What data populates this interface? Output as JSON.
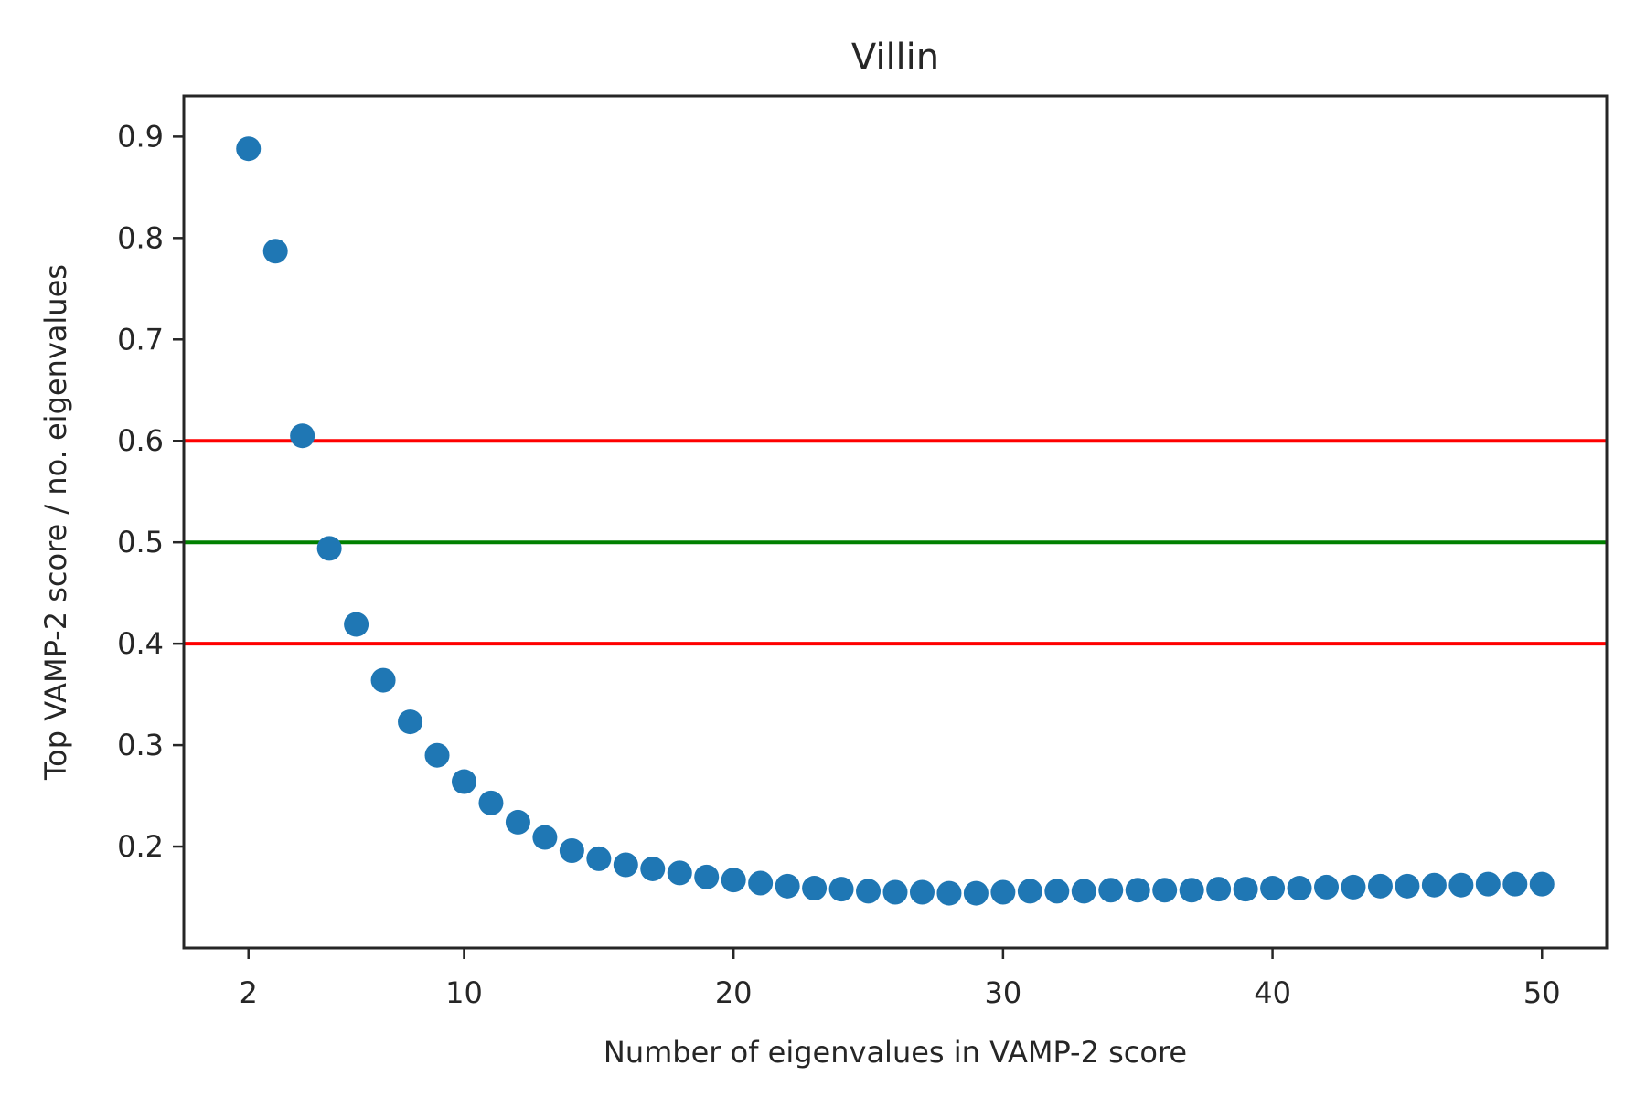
{
  "chart_data": {
    "type": "scatter",
    "title": "Villin",
    "xlabel": "Number of eigenvalues in VAMP-2 score",
    "ylabel": "Top VAMP-2 score / no. eigenvalues",
    "xlim": [
      -0.4,
      52.4
    ],
    "ylim": [
      0.1,
      0.94
    ],
    "xticks": [
      2,
      10,
      20,
      30,
      40,
      50
    ],
    "yticks": [
      0.2,
      0.3,
      0.4,
      0.5,
      0.6,
      0.7,
      0.8,
      0.9
    ],
    "grid": false,
    "series": [
      {
        "color": "#1f77b4",
        "x": [
          2,
          3,
          4,
          5,
          6,
          7,
          8,
          9,
          10,
          11,
          12,
          13,
          14,
          15,
          16,
          17,
          18,
          19,
          20,
          21,
          22,
          23,
          24,
          25,
          26,
          27,
          28,
          29,
          30,
          31,
          32,
          33,
          34,
          35,
          36,
          37,
          38,
          39,
          40,
          41,
          42,
          43,
          44,
          45,
          46,
          47,
          48,
          49,
          50
        ],
        "y": [
          0.888,
          0.787,
          0.605,
          0.494,
          0.419,
          0.364,
          0.323,
          0.29,
          0.264,
          0.243,
          0.224,
          0.209,
          0.196,
          0.188,
          0.182,
          0.178,
          0.174,
          0.17,
          0.167,
          0.164,
          0.161,
          0.159,
          0.158,
          0.156,
          0.155,
          0.155,
          0.154,
          0.154,
          0.155,
          0.156,
          0.156,
          0.156,
          0.157,
          0.157,
          0.157,
          0.157,
          0.158,
          0.158,
          0.159,
          0.159,
          0.16,
          0.16,
          0.161,
          0.161,
          0.162,
          0.162,
          0.163,
          0.163,
          0.163
        ]
      }
    ],
    "hlines": [
      {
        "y": 0.6,
        "color": "#ff0000"
      },
      {
        "y": 0.5,
        "color": "#008000"
      },
      {
        "y": 0.4,
        "color": "#ff0000"
      }
    ]
  }
}
